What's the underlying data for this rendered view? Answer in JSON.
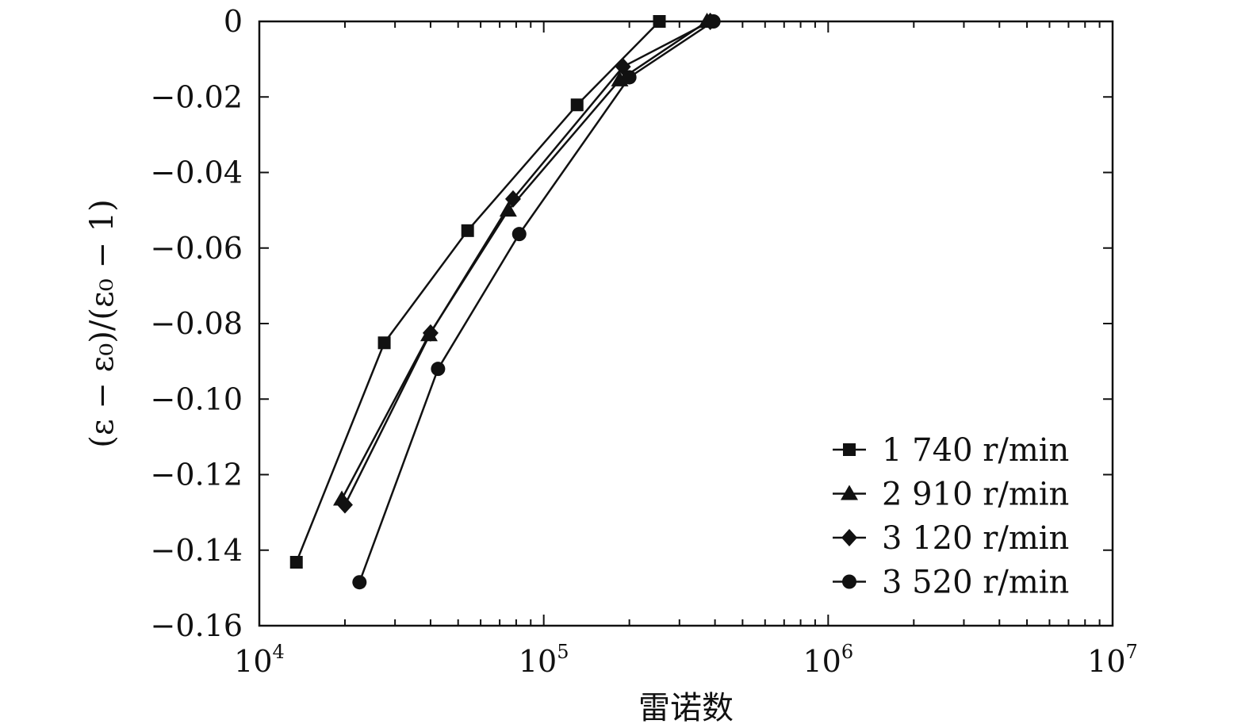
{
  "chart_data": {
    "type": "line",
    "xscale": "log",
    "xlim": [
      10000,
      10000000
    ],
    "ylim": [
      -0.16,
      0
    ],
    "xlabel": "雷诺数",
    "ylabel": "(ε − ε₀)/(ε₀ − 1)",
    "x_tick_labels": [
      {
        "base": "10",
        "exp": "4"
      },
      {
        "base": "10",
        "exp": "5"
      },
      {
        "base": "10",
        "exp": "6"
      },
      {
        "base": "10",
        "exp": "7"
      }
    ],
    "y_ticks": [
      0,
      -0.02,
      -0.04,
      -0.06,
      -0.08,
      -0.1,
      -0.12,
      -0.14,
      -0.16
    ],
    "y_tick_labels": [
      "0",
      "−0.02",
      "−0.04",
      "−0.06",
      "−0.08",
      "−0.10",
      "−0.12",
      "−0.14",
      "−0.16"
    ],
    "grid": false,
    "legend_position": "bottom-right",
    "series": [
      {
        "name": "1 740 r/min",
        "marker": "square",
        "x": [
          13500,
          27500,
          54000,
          131000,
          255000
        ],
        "y": [
          -0.1432,
          -0.0851,
          -0.0554,
          -0.0221,
          0.0
        ]
      },
      {
        "name": "2 910 r/min",
        "marker": "triangle",
        "x": [
          19500,
          39500,
          75000,
          185000,
          375000
        ],
        "y": [
          -0.1265,
          -0.083,
          -0.05,
          -0.0155,
          0.0
        ]
      },
      {
        "name": "3 120 r/min",
        "marker": "diamond",
        "x": [
          20000,
          40000,
          78000,
          190000,
          385000
        ],
        "y": [
          -0.128,
          -0.0825,
          -0.047,
          -0.012,
          0.0
        ]
      },
      {
        "name": "3 520 r/min",
        "marker": "circle",
        "x": [
          22500,
          42500,
          82000,
          200000,
          395000
        ],
        "y": [
          -0.1485,
          -0.092,
          -0.0563,
          -0.0148,
          0.0
        ]
      }
    ]
  }
}
